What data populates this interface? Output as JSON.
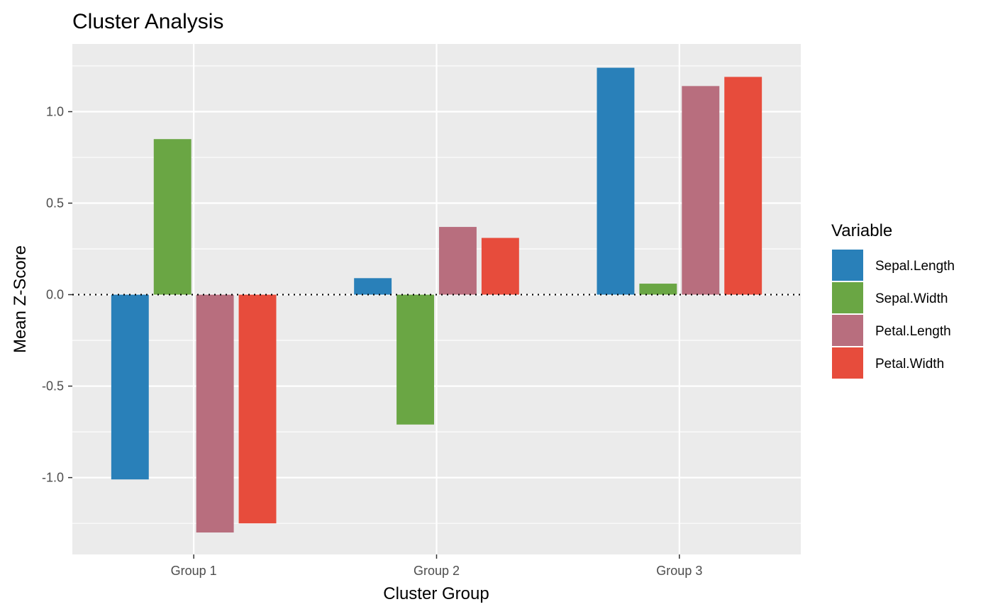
{
  "chart_data": {
    "type": "bar",
    "title": "Cluster Analysis",
    "xlabel": "Cluster Group",
    "ylabel": "Mean Z-Score",
    "categories": [
      "Group 1",
      "Group 2",
      "Group 3"
    ],
    "series": [
      {
        "name": "Sepal.Length",
        "color": "#2980B9",
        "values": [
          -1.01,
          0.09,
          1.24
        ]
      },
      {
        "name": "Sepal.Width",
        "color": "#6AA644",
        "values": [
          0.85,
          -0.71,
          0.06
        ]
      },
      {
        "name": "Petal.Length",
        "color": "#B86E7E",
        "values": [
          -1.3,
          0.37,
          1.14
        ]
      },
      {
        "name": "Petal.Width",
        "color": "#E74C3C",
        "values": [
          -1.25,
          0.31,
          1.19
        ]
      }
    ],
    "ylim": [
      -1.42,
      1.37
    ],
    "yticks": [
      -1.0,
      -0.5,
      0.0,
      0.5,
      1.0
    ],
    "ytick_labels": [
      "-1.0",
      "-0.5",
      "0.0",
      "0.5",
      "1.0"
    ],
    "reference_line": {
      "y": 0,
      "style": "dotted"
    },
    "grid": true,
    "panel_background": "#EBEBEB",
    "legend": {
      "title": "Variable",
      "position": "right"
    }
  }
}
